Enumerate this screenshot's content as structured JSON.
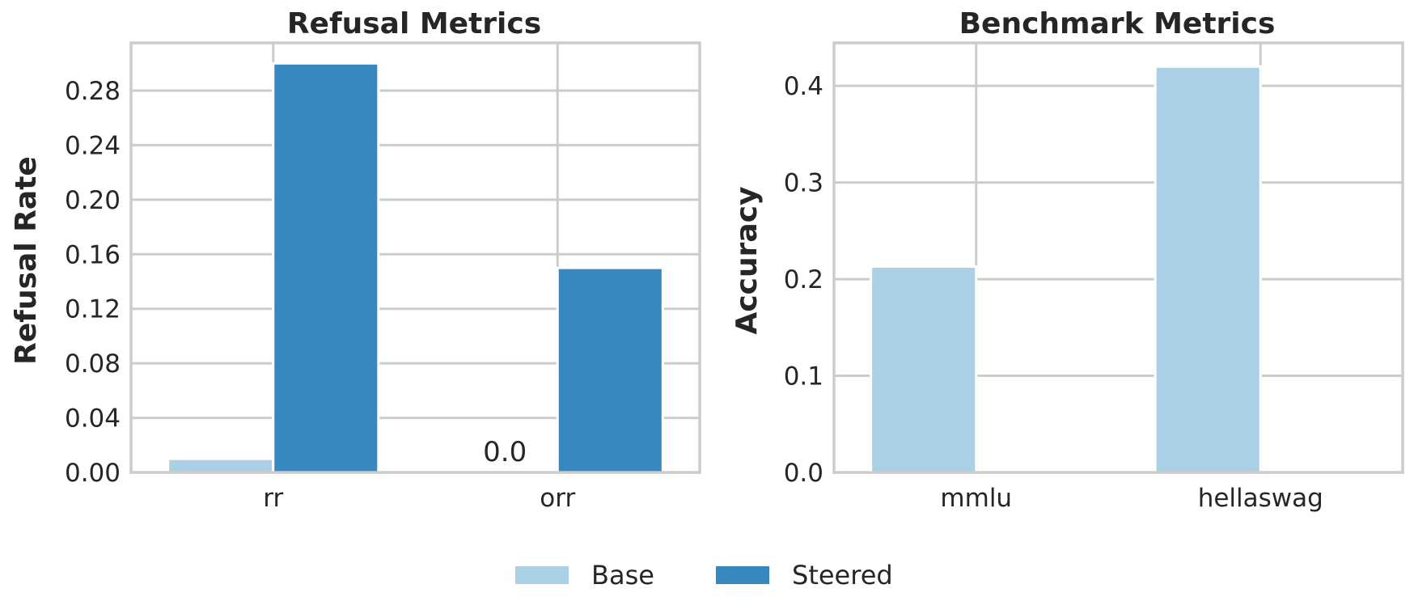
{
  "colors": {
    "base": "#abcfe5",
    "steered": "#3787c0",
    "grid": "#cccccc",
    "text": "#262626"
  },
  "legend": {
    "items": [
      "Base",
      "Steered"
    ],
    "placement": "bottom-center"
  },
  "chart_data": [
    {
      "type": "bar",
      "title": "Refusal Metrics",
      "xlabel": "",
      "ylabel": "Refusal Rate",
      "categories": [
        "rr",
        "orr"
      ],
      "series": [
        {
          "name": "Base",
          "values": [
            0.01,
            0.0
          ]
        },
        {
          "name": "Steered",
          "values": [
            0.3,
            0.15
          ]
        }
      ],
      "ylim": [
        0,
        0.315
      ],
      "yticks": [
        "0.00",
        "0.04",
        "0.08",
        "0.12",
        "0.16",
        "0.20",
        "0.24",
        "0.28"
      ],
      "annotations": [
        {
          "category": "orr",
          "series": "Base",
          "text": "0.0"
        }
      ],
      "grid": true
    },
    {
      "type": "bar",
      "title": "Benchmark Metrics",
      "xlabel": "",
      "ylabel": "Accuracy",
      "categories": [
        "mmlu",
        "hellaswag"
      ],
      "series": [
        {
          "name": "Base",
          "values": [
            0.213,
            0.42
          ]
        },
        {
          "name": "Steered",
          "values": [
            0,
            0
          ]
        }
      ],
      "ylim": [
        0,
        0.4445
      ],
      "yticks": [
        "0.0",
        "0.1",
        "0.2",
        "0.3",
        "0.4"
      ],
      "annotations": [],
      "grid": true
    }
  ]
}
